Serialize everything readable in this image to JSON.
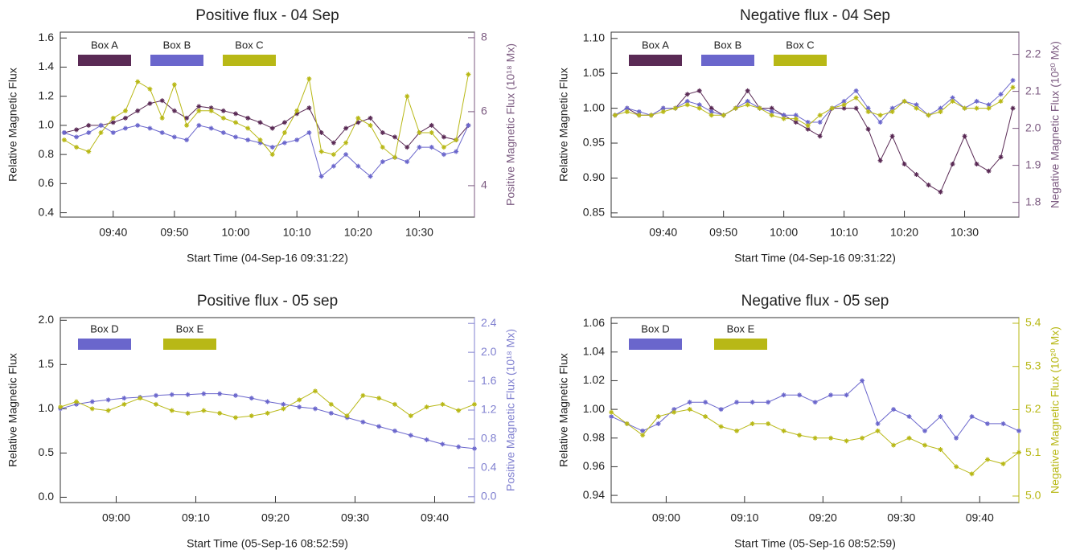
{
  "chart_data": [
    {
      "type": "line",
      "title": "Positive flux - 04 Sep",
      "xlabel": "Start Time (04-Sep-16 09:31:22)",
      "ylabel": "Relative Magnetic Flux",
      "y2label": "Positive Magnetic Flux (10¹⁸ Mx)",
      "y2color": "#7b5a80",
      "x": [
        "09:32",
        "09:34",
        "09:36",
        "09:38",
        "09:40",
        "09:42",
        "09:44",
        "09:46",
        "09:48",
        "09:50",
        "09:52",
        "09:54",
        "09:56",
        "09:58",
        "10:00",
        "10:02",
        "10:04",
        "10:06",
        "10:08",
        "10:10",
        "10:12",
        "10:14",
        "10:16",
        "10:18",
        "10:20",
        "10:22",
        "10:24",
        "10:26",
        "10:28",
        "10:30",
        "10:32",
        "10:34",
        "10:36",
        "10:38"
      ],
      "xlim": [
        "09:31:22",
        "10:39"
      ],
      "xticks": [
        "09:40",
        "09:50",
        "10:00",
        "10:10",
        "10:20",
        "10:30"
      ],
      "ylim": [
        0.37,
        1.64
      ],
      "yticks": [
        0.4,
        0.6,
        0.8,
        {
          "value": 1.0,
          "label": "1.0"
        },
        1.2,
        1.4,
        1.6
      ],
      "y2lim": [
        3.15,
        8.15
      ],
      "y2ticks": [
        4,
        6,
        8
      ],
      "series": [
        {
          "name": "Box A",
          "color": "#5a2a55",
          "values": [
            0.95,
            0.97,
            1.0,
            1.0,
            1.02,
            1.05,
            1.1,
            1.15,
            1.17,
            1.1,
            1.05,
            1.13,
            1.12,
            1.1,
            1.08,
            1.05,
            1.02,
            0.98,
            1.02,
            1.08,
            1.12,
            0.95,
            0.88,
            0.98,
            1.02,
            1.05,
            0.95,
            0.92,
            0.85,
            0.95,
            1.0,
            0.92,
            0.9,
            1.0
          ]
        },
        {
          "name": "Box B",
          "color": "#6a66cc",
          "values": [
            0.95,
            0.92,
            0.95,
            1.0,
            0.95,
            0.98,
            1.0,
            0.98,
            0.95,
            0.92,
            0.9,
            1.0,
            0.98,
            0.95,
            0.92,
            0.9,
            0.88,
            0.85,
            0.88,
            0.9,
            0.95,
            0.65,
            0.72,
            0.8,
            0.72,
            0.65,
            0.75,
            0.78,
            0.75,
            0.85,
            0.85,
            0.8,
            0.82,
            1.0
          ]
        },
        {
          "name": "Box C",
          "color": "#b8b816",
          "values": [
            0.9,
            0.85,
            0.82,
            0.95,
            1.05,
            1.1,
            1.3,
            1.25,
            1.05,
            1.28,
            1.0,
            1.1,
            1.1,
            1.05,
            1.02,
            0.98,
            0.9,
            0.8,
            0.95,
            1.1,
            1.32,
            0.82,
            0.8,
            0.88,
            1.05,
            1.0,
            0.85,
            0.78,
            1.2,
            0.95,
            0.95,
            0.85,
            0.9,
            1.35
          ]
        }
      ]
    },
    {
      "type": "line",
      "title": "Negative flux - 04 Sep",
      "xlabel": "Start Time (04-Sep-16 09:31:22)",
      "ylabel": "Relative Magnetic Flux",
      "y2label": "Negative Magnetic Flux (10²⁰ Mx)",
      "y2color": "#7b5a80",
      "x": [
        "09:32",
        "09:34",
        "09:36",
        "09:38",
        "09:40",
        "09:42",
        "09:44",
        "09:46",
        "09:48",
        "09:50",
        "09:52",
        "09:54",
        "09:56",
        "09:58",
        "10:00",
        "10:02",
        "10:04",
        "10:06",
        "10:08",
        "10:10",
        "10:12",
        "10:14",
        "10:16",
        "10:18",
        "10:20",
        "10:22",
        "10:24",
        "10:26",
        "10:28",
        "10:30",
        "10:32",
        "10:34",
        "10:36",
        "10:38"
      ],
      "xlim": [
        "09:31:22",
        "10:39"
      ],
      "xticks": [
        "09:40",
        "09:50",
        "10:00",
        "10:10",
        "10:20",
        "10:30"
      ],
      "ylim": [
        0.844,
        1.109
      ],
      "yticks": [
        0.85,
        {
          "value": 0.9,
          "label": "0.90"
        },
        0.95,
        {
          "value": 1.0,
          "label": "1.00"
        },
        1.05,
        {
          "value": 1.1,
          "label": "1.10"
        }
      ],
      "y2lim": [
        1.76,
        2.26
      ],
      "y2ticks": [
        1.8,
        1.9,
        {
          "value": 2.0,
          "label": "2.0"
        },
        2.1,
        2.2
      ],
      "series": [
        {
          "name": "Box A",
          "color": "#5a2a55",
          "values": [
            0.99,
            1.0,
            0.99,
            0.99,
            1.0,
            1.0,
            1.02,
            1.025,
            1.0,
            0.99,
            1.0,
            1.025,
            1.0,
            1.0,
            0.99,
            0.98,
            0.97,
            0.96,
            1.0,
            1.0,
            1.0,
            0.97,
            0.925,
            0.96,
            0.92,
            0.905,
            0.89,
            0.88,
            0.92,
            0.96,
            0.92,
            0.91,
            0.93,
            1.0
          ]
        },
        {
          "name": "Box B",
          "color": "#6a66cc",
          "values": [
            0.99,
            1.0,
            0.995,
            0.99,
            1.0,
            1.0,
            1.01,
            1.005,
            0.995,
            0.99,
            1.0,
            1.01,
            1.0,
            0.995,
            0.99,
            0.99,
            0.98,
            0.98,
            1.0,
            1.01,
            1.025,
            1.0,
            0.98,
            1.0,
            1.01,
            1.005,
            0.99,
            1.0,
            1.015,
            1.0,
            1.01,
            1.005,
            1.02,
            1.04
          ]
        },
        {
          "name": "Box C",
          "color": "#b8b816",
          "values": [
            0.99,
            0.995,
            0.99,
            0.99,
            0.995,
            1.0,
            1.005,
            1.0,
            0.99,
            0.99,
            1.0,
            1.005,
            1.0,
            0.99,
            0.985,
            0.985,
            0.975,
            0.99,
            1.0,
            1.005,
            1.015,
            0.995,
            0.99,
            0.995,
            1.01,
            1.0,
            0.99,
            0.995,
            1.01,
            1.0,
            1.0,
            1.0,
            1.01,
            1.03
          ]
        }
      ]
    },
    {
      "type": "line",
      "title": "Positive flux - 05 sep",
      "xlabel": "Start Time (05-Sep-16 08:52:59)",
      "ylabel": "Relative Magnetic Flux",
      "y2label": "Positive Magnetic Flux (10¹⁸ Mx)",
      "y2color": "#8080d0",
      "x": [
        "08:53",
        "08:55",
        "08:57",
        "08:59",
        "09:01",
        "09:03",
        "09:05",
        "09:07",
        "09:09",
        "09:11",
        "09:13",
        "09:15",
        "09:17",
        "09:19",
        "09:21",
        "09:23",
        "09:25",
        "09:27",
        "09:29",
        "09:31",
        "09:33",
        "09:35",
        "09:37",
        "09:39",
        "09:41",
        "09:43",
        "09:45"
      ],
      "xlim": [
        "08:52:59",
        "09:45"
      ],
      "xticks": [
        "09:00",
        "09:10",
        "09:20",
        "09:30",
        "09:40"
      ],
      "ylim": [
        -0.06,
        2.03
      ],
      "yticks": [
        {
          "value": 0.0,
          "label": "0.0"
        },
        0.5,
        {
          "value": 1.0,
          "label": "1.0"
        },
        1.5,
        {
          "value": 2.0,
          "label": "2.0"
        }
      ],
      "y2lim": [
        -0.08,
        2.48
      ],
      "y2ticks": [
        {
          "value": 0.0,
          "label": "0.0"
        },
        0.4,
        0.8,
        1.2,
        1.6,
        {
          "value": 2.0,
          "label": "2.0"
        },
        2.4
      ],
      "series": [
        {
          "name": "Box D",
          "color": "#6a66cc",
          "values": [
            1.0,
            1.05,
            1.08,
            1.1,
            1.12,
            1.13,
            1.15,
            1.16,
            1.16,
            1.17,
            1.17,
            1.15,
            1.12,
            1.08,
            1.05,
            1.02,
            1.0,
            0.95,
            0.9,
            0.85,
            0.8,
            0.75,
            0.7,
            0.65,
            0.6,
            0.57,
            0.55
          ]
        },
        {
          "name": "Box E",
          "color": "#b8b816",
          "values": [
            1.02,
            1.08,
            1.0,
            0.98,
            1.05,
            1.12,
            1.05,
            0.98,
            0.95,
            0.98,
            0.95,
            0.9,
            0.92,
            0.95,
            1.0,
            1.1,
            1.2,
            1.05,
            0.92,
            1.15,
            1.12,
            1.05,
            0.92,
            1.02,
            1.05,
            0.98,
            1.05
          ]
        }
      ]
    },
    {
      "type": "line",
      "title": "Negative flux - 05 sep",
      "xlabel": "Start Time (05-Sep-16 08:52:59)",
      "ylabel": "Relative Magnetic Flux",
      "y2label": "Negative Magnetic Flux (10²⁰ Mx)",
      "y2color": "#b8b816",
      "x": [
        "08:53",
        "08:55",
        "08:57",
        "08:59",
        "09:01",
        "09:03",
        "09:05",
        "09:07",
        "09:09",
        "09:11",
        "09:13",
        "09:15",
        "09:17",
        "09:19",
        "09:21",
        "09:23",
        "09:25",
        "09:27",
        "09:29",
        "09:31",
        "09:33",
        "09:35",
        "09:37",
        "09:39",
        "09:41",
        "09:43",
        "09:45"
      ],
      "xlim": [
        "08:52:59",
        "09:45"
      ],
      "xticks": [
        "09:00",
        "09:10",
        "09:20",
        "09:30",
        "09:40"
      ],
      "ylim": [
        0.935,
        1.064
      ],
      "yticks": [
        0.94,
        0.96,
        0.98,
        {
          "value": 1.0,
          "label": "1.00"
        },
        1.02,
        1.04,
        1.06
      ],
      "y2lim": [
        4.985,
        5.413
      ],
      "y2ticks": [
        {
          "value": 5.0,
          "label": "5.0"
        },
        5.1,
        5.2,
        5.3,
        5.4
      ],
      "series": [
        {
          "name": "Box D",
          "color": "#6a66cc",
          "values": [
            0.995,
            0.99,
            0.985,
            0.99,
            1.0,
            1.005,
            1.005,
            1.0,
            1.005,
            1.005,
            1.005,
            1.01,
            1.01,
            1.005,
            1.01,
            1.01,
            1.02,
            0.99,
            1.0,
            0.995,
            0.985,
            0.995,
            0.98,
            0.995,
            0.99,
            0.99,
            0.985
          ]
        },
        {
          "name": "Box E",
          "color": "#b8b816",
          "values": [
            0.998,
            0.99,
            0.982,
            0.995,
            0.998,
            1.0,
            0.995,
            0.988,
            0.985,
            0.99,
            0.99,
            0.985,
            0.982,
            0.98,
            0.98,
            0.978,
            0.98,
            0.985,
            0.975,
            0.98,
            0.975,
            0.972,
            0.96,
            0.955,
            0.965,
            0.962,
            0.97
          ]
        }
      ]
    }
  ]
}
